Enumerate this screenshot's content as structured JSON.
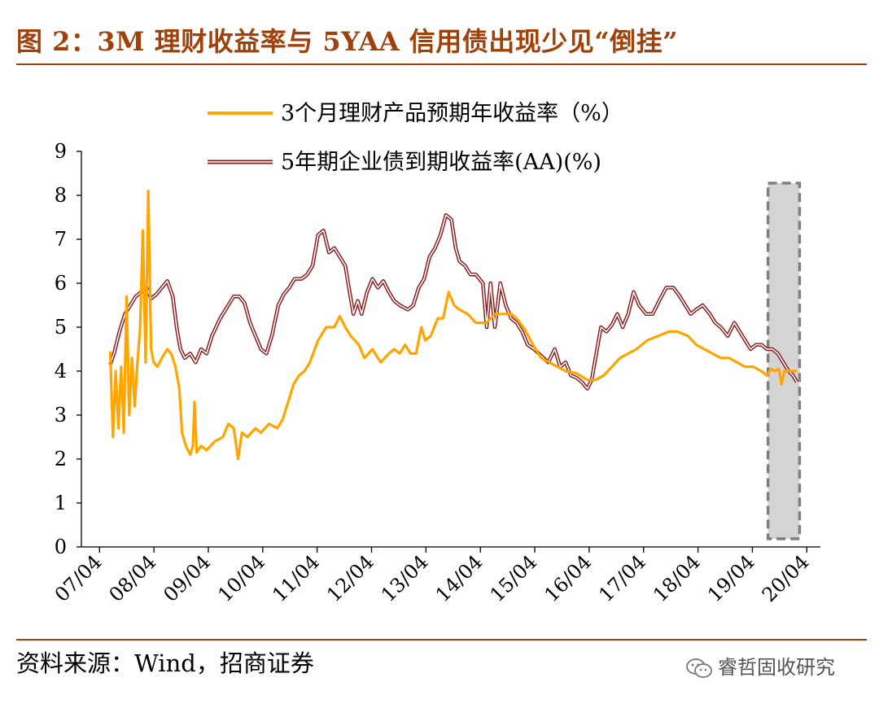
{
  "title": "图 2：3M 理财收益率与 5YAA 信用债出现少见“倒挂”",
  "source": "资料来源：Wind，招商证券",
  "watermark": "睿哲固收研究",
  "colors": {
    "accent": "#a0410a",
    "series_wealth": "#ffa500",
    "series_bond": "#8b1a1a",
    "highlight_fill": "#d4d4d4",
    "highlight_border": "#7f7f7f"
  },
  "chart_data": {
    "type": "line",
    "ylim": [
      0,
      9
    ],
    "yticks": [
      "0",
      "1",
      "2",
      "3",
      "4",
      "5",
      "6",
      "7",
      "8",
      "9"
    ],
    "xticks": [
      "07/04",
      "08/04",
      "09/04",
      "10/04",
      "11/04",
      "12/04",
      "13/04",
      "14/04",
      "15/04",
      "16/04",
      "17/04",
      "18/04",
      "19/04",
      "20/04"
    ],
    "legend": {
      "placement": "top"
    },
    "highlight_region": {
      "x_start": 2019.62,
      "x_end": 2020.2
    },
    "series": [
      {
        "name": "3个月理财产品预期年收益率（%）",
        "style": "solid-orange",
        "points": [
          [
            2007.53,
            4.45
          ],
          [
            2007.58,
            2.5
          ],
          [
            2007.63,
            4.0
          ],
          [
            2007.68,
            2.7
          ],
          [
            2007.73,
            4.1
          ],
          [
            2007.78,
            2.6
          ],
          [
            2007.83,
            5.7
          ],
          [
            2007.88,
            3.0
          ],
          [
            2007.93,
            4.3
          ],
          [
            2007.98,
            3.2
          ],
          [
            2008.03,
            4.2
          ],
          [
            2008.08,
            5.0
          ],
          [
            2008.13,
            7.2
          ],
          [
            2008.18,
            4.2
          ],
          [
            2008.23,
            8.1
          ],
          [
            2008.28,
            4.5
          ],
          [
            2008.33,
            4.2
          ],
          [
            2008.4,
            4.1
          ],
          [
            2008.48,
            4.3
          ],
          [
            2008.58,
            4.5
          ],
          [
            2008.65,
            4.4
          ],
          [
            2008.73,
            4.1
          ],
          [
            2008.8,
            3.6
          ],
          [
            2008.85,
            2.6
          ],
          [
            2008.92,
            2.3
          ],
          [
            2009.0,
            2.1
          ],
          [
            2009.05,
            2.3
          ],
          [
            2009.08,
            3.3
          ],
          [
            2009.12,
            2.15
          ],
          [
            2009.2,
            2.3
          ],
          [
            2009.3,
            2.2
          ],
          [
            2009.45,
            2.4
          ],
          [
            2009.6,
            2.5
          ],
          [
            2009.7,
            2.8
          ],
          [
            2009.8,
            2.7
          ],
          [
            2009.88,
            2.0
          ],
          [
            2009.95,
            2.6
          ],
          [
            2010.05,
            2.5
          ],
          [
            2010.2,
            2.7
          ],
          [
            2010.3,
            2.6
          ],
          [
            2010.45,
            2.8
          ],
          [
            2010.6,
            2.7
          ],
          [
            2010.7,
            2.9
          ],
          [
            2010.8,
            3.3
          ],
          [
            2010.9,
            3.7
          ],
          [
            2011.0,
            3.9
          ],
          [
            2011.1,
            4.0
          ],
          [
            2011.2,
            4.2
          ],
          [
            2011.35,
            4.7
          ],
          [
            2011.5,
            5.0
          ],
          [
            2011.65,
            5.0
          ],
          [
            2011.75,
            5.25
          ],
          [
            2011.85,
            5.0
          ],
          [
            2011.95,
            4.8
          ],
          [
            2012.1,
            4.6
          ],
          [
            2012.2,
            4.3
          ],
          [
            2012.35,
            4.5
          ],
          [
            2012.5,
            4.2
          ],
          [
            2012.65,
            4.4
          ],
          [
            2012.75,
            4.5
          ],
          [
            2012.85,
            4.4
          ],
          [
            2012.95,
            4.6
          ],
          [
            2013.05,
            4.4
          ],
          [
            2013.15,
            4.4
          ],
          [
            2013.25,
            5.0
          ],
          [
            2013.32,
            4.7
          ],
          [
            2013.42,
            4.8
          ],
          [
            2013.55,
            5.2
          ],
          [
            2013.65,
            5.2
          ],
          [
            2013.75,
            5.8
          ],
          [
            2013.85,
            5.5
          ],
          [
            2013.95,
            5.4
          ],
          [
            2014.1,
            5.3
          ],
          [
            2014.25,
            5.1
          ],
          [
            2014.45,
            5.1
          ],
          [
            2014.6,
            5.3
          ],
          [
            2014.75,
            5.3
          ],
          [
            2014.9,
            5.3
          ],
          [
            2015.0,
            5.2
          ],
          [
            2015.15,
            4.95
          ],
          [
            2015.3,
            4.6
          ],
          [
            2015.45,
            4.3
          ],
          [
            2015.6,
            4.2
          ],
          [
            2015.75,
            4.1
          ],
          [
            2015.9,
            4.0
          ],
          [
            2016.1,
            3.95
          ],
          [
            2016.3,
            3.8
          ],
          [
            2016.45,
            3.8
          ],
          [
            2016.6,
            3.9
          ],
          [
            2016.75,
            4.1
          ],
          [
            2016.9,
            4.3
          ],
          [
            2017.05,
            4.4
          ],
          [
            2017.2,
            4.5
          ],
          [
            2017.4,
            4.7
          ],
          [
            2017.6,
            4.8
          ],
          [
            2017.8,
            4.9
          ],
          [
            2017.95,
            4.9
          ],
          [
            2018.15,
            4.8
          ],
          [
            2018.3,
            4.6
          ],
          [
            2018.45,
            4.5
          ],
          [
            2018.6,
            4.4
          ],
          [
            2018.75,
            4.3
          ],
          [
            2018.9,
            4.3
          ],
          [
            2019.05,
            4.2
          ],
          [
            2019.2,
            4.1
          ],
          [
            2019.35,
            4.1
          ],
          [
            2019.5,
            4.0
          ],
          [
            2019.6,
            3.9
          ],
          [
            2019.68,
            4.05
          ],
          [
            2019.75,
            4.0
          ],
          [
            2019.82,
            4.05
          ],
          [
            2019.87,
            3.7
          ],
          [
            2019.92,
            4.0
          ],
          [
            2020.0,
            4.0
          ],
          [
            2020.08,
            4.0
          ],
          [
            2020.15,
            4.0
          ]
        ]
      },
      {
        "name": "5年期企业债到期收益率(AA)(%)",
        "style": "double-dark-red",
        "points": [
          [
            2007.53,
            4.15
          ],
          [
            2007.6,
            4.4
          ],
          [
            2007.7,
            4.9
          ],
          [
            2007.8,
            5.3
          ],
          [
            2007.9,
            5.5
          ],
          [
            2008.0,
            5.7
          ],
          [
            2008.1,
            5.8
          ],
          [
            2008.2,
            5.9
          ],
          [
            2008.28,
            5.65
          ],
          [
            2008.38,
            5.75
          ],
          [
            2008.48,
            5.9
          ],
          [
            2008.58,
            6.05
          ],
          [
            2008.68,
            5.7
          ],
          [
            2008.75,
            5.0
          ],
          [
            2008.82,
            4.5
          ],
          [
            2008.9,
            4.3
          ],
          [
            2009.0,
            4.4
          ],
          [
            2009.1,
            4.2
          ],
          [
            2009.2,
            4.5
          ],
          [
            2009.3,
            4.4
          ],
          [
            2009.4,
            4.8
          ],
          [
            2009.55,
            5.2
          ],
          [
            2009.7,
            5.5
          ],
          [
            2009.8,
            5.7
          ],
          [
            2009.9,
            5.7
          ],
          [
            2010.0,
            5.55
          ],
          [
            2010.1,
            5.1
          ],
          [
            2010.2,
            4.8
          ],
          [
            2010.3,
            4.5
          ],
          [
            2010.4,
            4.4
          ],
          [
            2010.5,
            4.8
          ],
          [
            2010.62,
            5.5
          ],
          [
            2010.72,
            5.75
          ],
          [
            2010.82,
            5.9
          ],
          [
            2010.92,
            6.1
          ],
          [
            2011.05,
            6.1
          ],
          [
            2011.15,
            6.2
          ],
          [
            2011.25,
            6.4
          ],
          [
            2011.35,
            7.1
          ],
          [
            2011.45,
            7.2
          ],
          [
            2011.55,
            6.7
          ],
          [
            2011.65,
            6.8
          ],
          [
            2011.75,
            6.6
          ],
          [
            2011.85,
            6.4
          ],
          [
            2011.93,
            5.8
          ],
          [
            2012.0,
            5.3
          ],
          [
            2012.08,
            5.6
          ],
          [
            2012.15,
            5.3
          ],
          [
            2012.25,
            5.8
          ],
          [
            2012.35,
            6.1
          ],
          [
            2012.45,
            5.9
          ],
          [
            2012.55,
            6.05
          ],
          [
            2012.65,
            5.8
          ],
          [
            2012.75,
            5.6
          ],
          [
            2012.85,
            5.5
          ],
          [
            2013.0,
            5.4
          ],
          [
            2013.1,
            5.5
          ],
          [
            2013.2,
            5.9
          ],
          [
            2013.3,
            6.1
          ],
          [
            2013.4,
            6.6
          ],
          [
            2013.5,
            6.8
          ],
          [
            2013.6,
            7.1
          ],
          [
            2013.7,
            7.55
          ],
          [
            2013.8,
            7.45
          ],
          [
            2013.88,
            6.8
          ],
          [
            2013.95,
            6.5
          ],
          [
            2014.05,
            6.4
          ],
          [
            2014.15,
            6.2
          ],
          [
            2014.25,
            6.2
          ],
          [
            2014.38,
            6.0
          ],
          [
            2014.45,
            5.0
          ],
          [
            2014.52,
            6.0
          ],
          [
            2014.6,
            5.0
          ],
          [
            2014.7,
            6.0
          ],
          [
            2014.8,
            5.5
          ],
          [
            2014.9,
            5.2
          ],
          [
            2015.0,
            5.1
          ],
          [
            2015.1,
            4.9
          ],
          [
            2015.2,
            4.6
          ],
          [
            2015.32,
            4.5
          ],
          [
            2015.45,
            4.35
          ],
          [
            2015.58,
            4.2
          ],
          [
            2015.7,
            4.5
          ],
          [
            2015.8,
            4.1
          ],
          [
            2015.9,
            4.2
          ],
          [
            2016.0,
            3.9
          ],
          [
            2016.1,
            3.85
          ],
          [
            2016.2,
            3.75
          ],
          [
            2016.3,
            3.6
          ],
          [
            2016.38,
            3.8
          ],
          [
            2016.45,
            4.3
          ],
          [
            2016.55,
            5.0
          ],
          [
            2016.65,
            4.9
          ],
          [
            2016.75,
            5.05
          ],
          [
            2016.85,
            5.3
          ],
          [
            2016.95,
            5.0
          ],
          [
            2017.05,
            5.3
          ],
          [
            2017.15,
            5.8
          ],
          [
            2017.25,
            5.5
          ],
          [
            2017.38,
            5.3
          ],
          [
            2017.5,
            5.3
          ],
          [
            2017.62,
            5.6
          ],
          [
            2017.75,
            5.9
          ],
          [
            2017.88,
            5.9
          ],
          [
            2018.0,
            5.7
          ],
          [
            2018.1,
            5.5
          ],
          [
            2018.2,
            5.3
          ],
          [
            2018.3,
            5.4
          ],
          [
            2018.42,
            5.5
          ],
          [
            2018.55,
            5.3
          ],
          [
            2018.65,
            5.1
          ],
          [
            2018.75,
            5.0
          ],
          [
            2018.88,
            4.8
          ],
          [
            2019.0,
            5.1
          ],
          [
            2019.1,
            4.9
          ],
          [
            2019.2,
            4.7
          ],
          [
            2019.3,
            4.5
          ],
          [
            2019.4,
            4.6
          ],
          [
            2019.5,
            4.6
          ],
          [
            2019.6,
            4.5
          ],
          [
            2019.7,
            4.5
          ],
          [
            2019.8,
            4.4
          ],
          [
            2019.9,
            4.2
          ],
          [
            2020.0,
            4.0
          ],
          [
            2020.08,
            3.9
          ],
          [
            2020.15,
            3.75
          ]
        ]
      }
    ]
  }
}
